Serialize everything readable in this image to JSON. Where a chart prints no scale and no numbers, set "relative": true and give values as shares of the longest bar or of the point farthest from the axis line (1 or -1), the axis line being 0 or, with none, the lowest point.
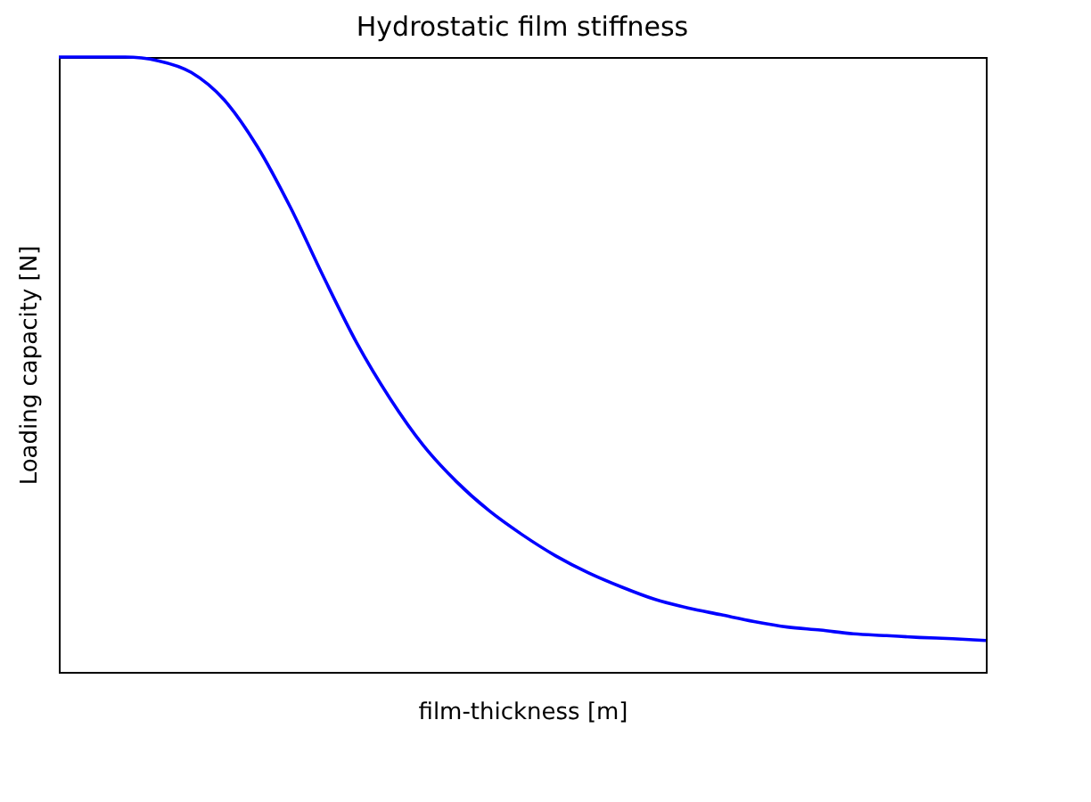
{
  "chart_data": {
    "type": "line",
    "title": "Hydrostatic film stiffness",
    "xlabel": "film-thickness [m]",
    "ylabel": "Loading capacity [N]",
    "relative": true,
    "categories": [
      null,
      null,
      null,
      null,
      null,
      null,
      null,
      null,
      null,
      null,
      null,
      null,
      null,
      null,
      null,
      null,
      null,
      null,
      null,
      null,
      null,
      null,
      null,
      null,
      null,
      null,
      null,
      null,
      null
    ],
    "series": [
      {
        "color": "#0000ff",
        "values": [
          1.0,
          1.0,
          1.0,
          0.994,
          0.975,
          0.93,
          0.854,
          0.755,
          0.642,
          0.535,
          0.445,
          0.369,
          0.31,
          0.262,
          0.223,
          0.189,
          0.161,
          0.138,
          0.118,
          0.104,
          0.093,
          0.082,
          0.073,
          0.068,
          0.062,
          0.059,
          0.056,
          0.054,
          0.051
        ]
      }
    ]
  }
}
